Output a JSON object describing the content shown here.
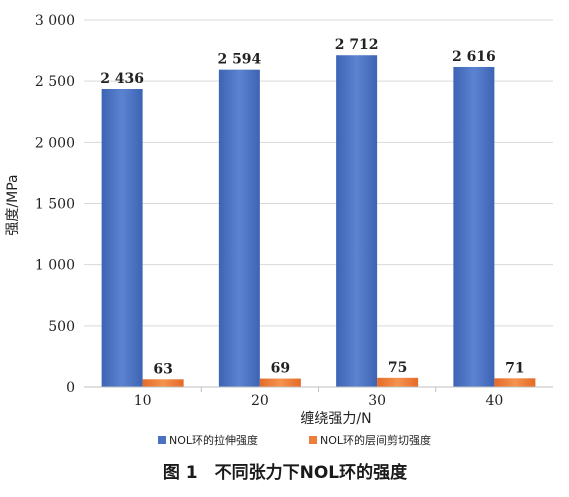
{
  "caption": "图 1　不同张力下NOL环的强度",
  "chart_data": {
    "type": "bar",
    "categories": [
      "10",
      "20",
      "30",
      "40"
    ],
    "series": [
      {
        "name": "NOL环的拉伸强度",
        "values": [
          2436,
          2594,
          2712,
          2616
        ],
        "labels": [
          "2 436",
          "2 594",
          "2 712",
          "2 616"
        ],
        "color": "#4a72c4"
      },
      {
        "name": "NOL环的层间剪切强度",
        "values": [
          63,
          69,
          75,
          71
        ],
        "labels": [
          "63",
          "69",
          "75",
          "71"
        ],
        "color": "#ee7d3a"
      }
    ],
    "xlabel": "缠绕强力/N",
    "ylabel": "强度/MPa",
    "ylim": [
      0,
      3000
    ],
    "yticks": [
      0,
      500,
      1000,
      1500,
      2000,
      2500,
      3000
    ],
    "ytick_labels": [
      "0",
      "500",
      "1 000",
      "1 500",
      "2 000",
      "2 500",
      "3 000"
    ],
    "grid": "horizontal",
    "legend_position": "bottom"
  }
}
